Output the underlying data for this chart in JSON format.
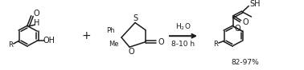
{
  "bg_color": "#ffffff",
  "fig_width": 3.78,
  "fig_height": 0.88,
  "dpi": 100,
  "arrow_text_top": "H$_2$O",
  "arrow_text_bottom": "8-10 h",
  "yield_text": "82-97%",
  "line_color": "#1a1a1a",
  "text_color": "#1a1a1a",
  "font_size": 7.0,
  "small_font_size": 6.0
}
